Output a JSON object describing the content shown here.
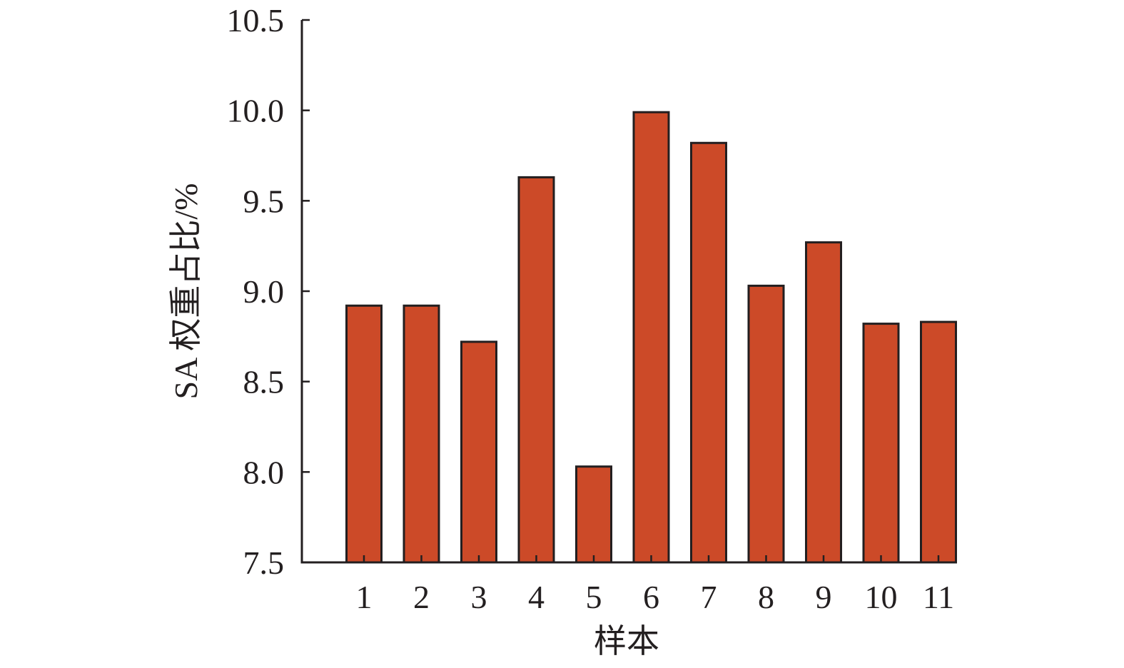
{
  "chart_data": {
    "type": "bar",
    "categories": [
      "1",
      "2",
      "3",
      "4",
      "5",
      "6",
      "7",
      "8",
      "9",
      "10",
      "11"
    ],
    "values": [
      8.92,
      8.92,
      8.72,
      9.63,
      8.03,
      9.99,
      9.82,
      9.03,
      9.27,
      8.82,
      8.83
    ],
    "xlabel": "样本",
    "ylabel": "SA 权重占比/%",
    "ylim": [
      7.5,
      10.5
    ],
    "yticks": [
      "7.5",
      "8.0",
      "8.5",
      "9.0",
      "9.5",
      "10.0",
      "10.5"
    ],
    "bar_color": "#cc4a28",
    "edge_color": "#231f20",
    "grid": false
  }
}
